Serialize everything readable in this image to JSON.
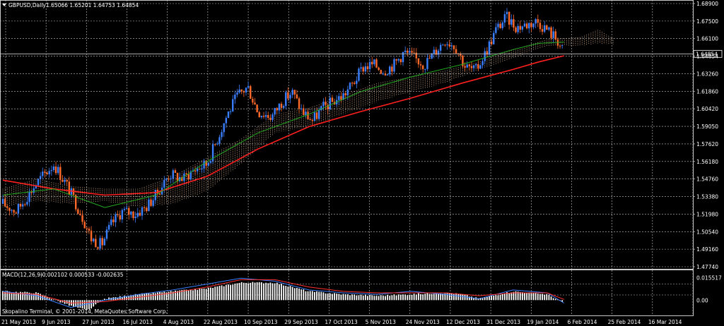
{
  "chart_data": [
    {
      "type": "candlestick",
      "title": "GBPUSD,Daily",
      "ohlc_header": "1.65066 1.65201 1.64753 1.64854",
      "current_price_label": "1.64854",
      "current_price": 1.64854,
      "ylim": [
        1.4774,
        1.689
      ],
      "y_ticks": [
        "1.68900",
        "1.67500",
        "1.66100",
        "1.64854",
        "1.63260",
        "1.61860",
        "1.60420",
        "1.59050",
        "1.57620",
        "1.56180",
        "1.54760",
        "1.53380",
        "1.51980",
        "1.50540",
        "1.49160",
        "1.47740"
      ],
      "x_ticks": [
        "21 May 2013",
        "9 Jun 2013",
        "27 Jun 2013",
        "16 Jul 2013",
        "4 Aug 2013",
        "22 Aug 2013",
        "10 Sep 2013",
        "29 Sep 2013",
        "17 Oct 2013",
        "5 Nov 2013",
        "24 Nov 2013",
        "12 Dec 2013",
        "31 Dec 2013",
        "19 Jan 2014",
        "6 Feb 2014",
        "25 Feb 2014",
        "16 Mar 2014"
      ],
      "price_path": [
        [
          0,
          1.528
        ],
        [
          8,
          1.522
        ],
        [
          20,
          1.545
        ],
        [
          30,
          1.56
        ],
        [
          38,
          1.542
        ],
        [
          46,
          1.52
        ],
        [
          52,
          1.5
        ],
        [
          58,
          1.495
        ],
        [
          64,
          1.512
        ],
        [
          70,
          1.522
        ],
        [
          78,
          1.52
        ],
        [
          84,
          1.525
        ],
        [
          90,
          1.535
        ],
        [
          98,
          1.552
        ],
        [
          106,
          1.548
        ],
        [
          112,
          1.555
        ],
        [
          120,
          1.56
        ],
        [
          126,
          1.58
        ],
        [
          132,
          1.6
        ],
        [
          138,
          1.615
        ],
        [
          144,
          1.622
        ],
        [
          150,
          1.602
        ],
        [
          158,
          1.598
        ],
        [
          164,
          1.61
        ],
        [
          170,
          1.618
        ],
        [
          176,
          1.602
        ],
        [
          182,
          1.595
        ],
        [
          188,
          1.605
        ],
        [
          194,
          1.61
        ],
        [
          200,
          1.615
        ],
        [
          206,
          1.625
        ],
        [
          212,
          1.638
        ],
        [
          218,
          1.64
        ],
        [
          224,
          1.635
        ],
        [
          230,
          1.64
        ],
        [
          236,
          1.65
        ],
        [
          242,
          1.645
        ],
        [
          248,
          1.64
        ],
        [
          254,
          1.65
        ],
        [
          260,
          1.66
        ],
        [
          266,
          1.655
        ],
        [
          272,
          1.638
        ],
        [
          278,
          1.635
        ],
        [
          284,
          1.65
        ],
        [
          290,
          1.668
        ],
        [
          296,
          1.678
        ],
        [
          302,
          1.67
        ],
        [
          308,
          1.672
        ],
        [
          314,
          1.675
        ],
        [
          320,
          1.668
        ],
        [
          326,
          1.66
        ],
        [
          330,
          1.6485
        ]
      ],
      "ma_slow": [
        [
          0,
          1.547
        ],
        [
          30,
          1.54
        ],
        [
          60,
          1.535
        ],
        [
          90,
          1.537
        ],
        [
          120,
          1.55
        ],
        [
          150,
          1.572
        ],
        [
          180,
          1.59
        ],
        [
          210,
          1.602
        ],
        [
          240,
          1.613
        ],
        [
          270,
          1.625
        ],
        [
          300,
          1.636
        ],
        [
          315,
          1.642
        ],
        [
          330,
          1.647
        ]
      ],
      "ma_fast": [
        [
          0,
          1.535
        ],
        [
          30,
          1.54
        ],
        [
          60,
          1.525
        ],
        [
          90,
          1.535
        ],
        [
          120,
          1.562
        ],
        [
          150,
          1.585
        ],
        [
          180,
          1.6
        ],
        [
          210,
          1.618
        ],
        [
          240,
          1.63
        ],
        [
          270,
          1.64
        ],
        [
          300,
          1.652
        ],
        [
          315,
          1.657
        ],
        [
          330,
          1.658
        ]
      ],
      "cloud_top": [
        [
          0,
          1.54
        ],
        [
          20,
          1.548
        ],
        [
          40,
          1.542
        ],
        [
          60,
          1.54
        ],
        [
          80,
          1.54
        ],
        [
          100,
          1.55
        ],
        [
          120,
          1.565
        ],
        [
          140,
          1.58
        ],
        [
          160,
          1.6
        ],
        [
          180,
          1.605
        ],
        [
          200,
          1.615
        ],
        [
          220,
          1.625
        ],
        [
          240,
          1.63
        ],
        [
          260,
          1.635
        ],
        [
          280,
          1.642
        ],
        [
          300,
          1.652
        ],
        [
          320,
          1.66
        ],
        [
          340,
          1.662
        ],
        [
          350,
          1.668
        ],
        [
          360,
          1.66
        ]
      ],
      "cloud_bottom": [
        [
          0,
          1.525
        ],
        [
          20,
          1.53
        ],
        [
          40,
          1.528
        ],
        [
          60,
          1.53
        ],
        [
          80,
          1.525
        ],
        [
          100,
          1.528
        ],
        [
          120,
          1.538
        ],
        [
          140,
          1.56
        ],
        [
          160,
          1.585
        ],
        [
          180,
          1.59
        ],
        [
          200,
          1.6
        ],
        [
          220,
          1.61
        ],
        [
          240,
          1.618
        ],
        [
          260,
          1.625
        ],
        [
          280,
          1.636
        ],
        [
          300,
          1.645
        ],
        [
          320,
          1.655
        ],
        [
          340,
          1.655
        ],
        [
          350,
          1.657
        ],
        [
          360,
          1.656
        ]
      ],
      "colors": {
        "bull": "#3a7fff",
        "bear": "#ff6a2a",
        "ma_slow": "#ff2020",
        "ma_fast": "#22aa22",
        "cloud": "#f4c7a0",
        "background": "#000000",
        "grid": "#c8c8c8"
      }
    },
    {
      "type": "macd",
      "title": "MACD(12,26,9)",
      "values_label": "-0.002102 0.000533 -0.002635",
      "ylim": [
        -0.01,
        0.02
      ],
      "y_ticks": [
        "0.015517",
        "0.00"
      ],
      "histogram_path": [
        [
          0,
          0.006
        ],
        [
          20,
          0.005
        ],
        [
          40,
          -0.004
        ],
        [
          50,
          -0.007
        ],
        [
          60,
          0.001
        ],
        [
          80,
          0.004
        ],
        [
          100,
          0.006
        ],
        [
          120,
          0.008
        ],
        [
          140,
          0.012
        ],
        [
          160,
          0.012
        ],
        [
          180,
          0.006
        ],
        [
          200,
          0.004
        ],
        [
          220,
          0.003
        ],
        [
          240,
          0.004
        ],
        [
          260,
          0.005
        ],
        [
          270,
          0.004
        ],
        [
          280,
          0.001
        ],
        [
          300,
          0.006
        ],
        [
          320,
          0.004
        ],
        [
          330,
          -0.002
        ]
      ],
      "macd_line": [
        [
          0,
          0.006
        ],
        [
          20,
          0.003
        ],
        [
          40,
          -0.005
        ],
        [
          60,
          0.0
        ],
        [
          80,
          0.004
        ],
        [
          100,
          0.007
        ],
        [
          120,
          0.011
        ],
        [
          140,
          0.015
        ],
        [
          160,
          0.013
        ],
        [
          180,
          0.007
        ],
        [
          200,
          0.005
        ],
        [
          220,
          0.004
        ],
        [
          240,
          0.006
        ],
        [
          260,
          0.004
        ],
        [
          280,
          0.001
        ],
        [
          300,
          0.007
        ],
        [
          320,
          0.005
        ],
        [
          330,
          -0.002
        ]
      ],
      "signal_line": [
        [
          0,
          0.005
        ],
        [
          20,
          0.004
        ],
        [
          40,
          -0.002
        ],
        [
          60,
          -0.001
        ],
        [
          80,
          0.002
        ],
        [
          100,
          0.005
        ],
        [
          120,
          0.009
        ],
        [
          140,
          0.014
        ],
        [
          160,
          0.014
        ],
        [
          180,
          0.009
        ],
        [
          200,
          0.006
        ],
        [
          220,
          0.005
        ],
        [
          240,
          0.005
        ],
        [
          260,
          0.005
        ],
        [
          280,
          0.003
        ],
        [
          300,
          0.005
        ],
        [
          320,
          0.005
        ],
        [
          330,
          0.0005
        ]
      ],
      "colors": {
        "histogram": "#ffffff",
        "macd": "#3a7fff",
        "signal": "#ff3030"
      }
    }
  ],
  "footer": {
    "copyright": "Skopalino Terminal, © 2001-2014, MetaQuotes Software Corp."
  }
}
